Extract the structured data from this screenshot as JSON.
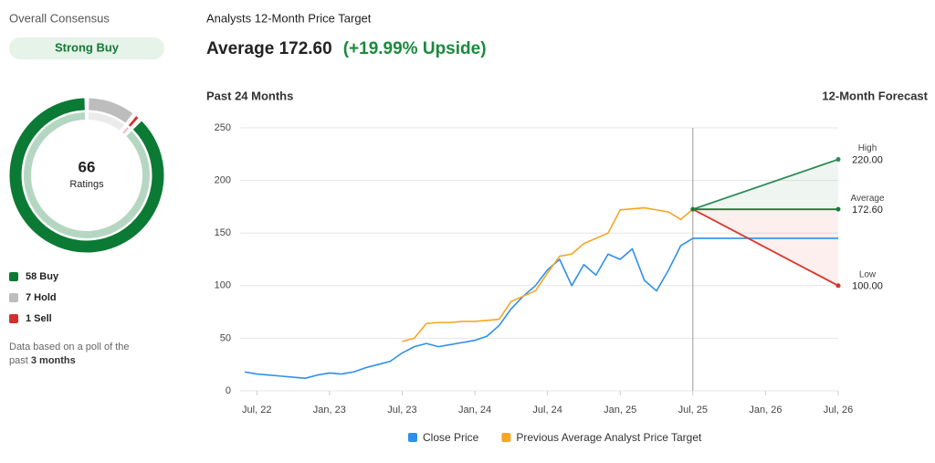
{
  "consensus": {
    "title": "Overall Consensus",
    "rating": "Strong Buy",
    "note": [
      "Data based on a poll of the",
      "past"
    ],
    "note_bold": "3 months"
  },
  "target": {
    "title": "Analysts 12-Month Price Target",
    "average_name": "Average",
    "upside": "(+19.99% Upside)",
    "past_label": "Past 24 Months",
    "forecast_label": "12-Month Forecast"
  },
  "chart_data": [
    {
      "type": "pie",
      "categories": [
        "Buy",
        "Hold",
        "Sell"
      ],
      "values": [
        58,
        7,
        1
      ],
      "value_labels": [
        "58 Buy",
        "7 Hold",
        "1 Sell"
      ],
      "colors": [
        "#0b7a34",
        "#bdbdbd",
        "#d32f2f"
      ],
      "total": 66,
      "total_label": "Ratings"
    },
    {
      "type": "line",
      "x": [
        "2022-06",
        "2022-07",
        "2022-08",
        "2022-09",
        "2022-10",
        "2022-11",
        "2022-12",
        "2023-01",
        "2023-02",
        "2023-03",
        "2023-04",
        "2023-05",
        "2023-06",
        "2023-07",
        "2023-08",
        "2023-09",
        "2023-10",
        "2023-11",
        "2023-12",
        "2024-01",
        "2024-02",
        "2024-03",
        "2024-04",
        "2024-05",
        "2024-06",
        "2024-07",
        "2024-08",
        "2024-09",
        "2024-10",
        "2024-11",
        "2024-12",
        "2025-01",
        "2025-02",
        "2025-03",
        "2025-04",
        "2025-05",
        "2025-06",
        "2025-07"
      ],
      "series": [
        {
          "name": "Close Price",
          "color": "#2f8fea",
          "values": [
            18,
            16,
            15,
            14,
            13,
            12,
            15,
            17,
            16,
            18,
            22,
            25,
            28,
            36,
            42,
            45,
            42,
            44,
            46,
            48,
            52,
            62,
            78,
            90,
            100,
            115,
            125,
            100,
            120,
            110,
            130,
            125,
            135,
            105,
            95,
            115,
            138,
            145
          ]
        },
        {
          "name": "Previous Average Analyst Price Target",
          "color": "#f5a623",
          "values": [
            null,
            null,
            null,
            null,
            null,
            null,
            null,
            null,
            null,
            null,
            null,
            null,
            null,
            47,
            50,
            64,
            65,
            65,
            66,
            66,
            67,
            68,
            85,
            90,
            95,
            112,
            128,
            130,
            140,
            145,
            150,
            172,
            173,
            174,
            172,
            170,
            163,
            172.6
          ]
        }
      ],
      "forecast": {
        "x": "2026-07",
        "names": [
          "High",
          "Average",
          "Low"
        ],
        "values": [
          220,
          172.6,
          100
        ],
        "value_labels": [
          "220.00",
          "172.60",
          "100.00"
        ],
        "colors": [
          "#2e8b57",
          "#1f7a3a",
          "#d9352b"
        ]
      },
      "xlim": [
        "2022-06",
        "2026-07"
      ],
      "xticks": [
        {
          "value": "2022-07",
          "label": "Jul, 22"
        },
        {
          "value": "2023-01",
          "label": "Jan, 23"
        },
        {
          "value": "2023-07",
          "label": "Jul, 23"
        },
        {
          "value": "2024-01",
          "label": "Jan, 24"
        },
        {
          "value": "2024-07",
          "label": "Jul, 24"
        },
        {
          "value": "2025-01",
          "label": "Jan, 25"
        },
        {
          "value": "2025-07",
          "label": "Jul, 25"
        },
        {
          "value": "2026-01",
          "label": "Jan, 26"
        },
        {
          "value": "2026-07",
          "label": "Jul, 26"
        }
      ],
      "ylim": [
        0,
        250
      ],
      "yticks": [
        0,
        50,
        100,
        150,
        200,
        250
      ],
      "grid": true
    }
  ]
}
